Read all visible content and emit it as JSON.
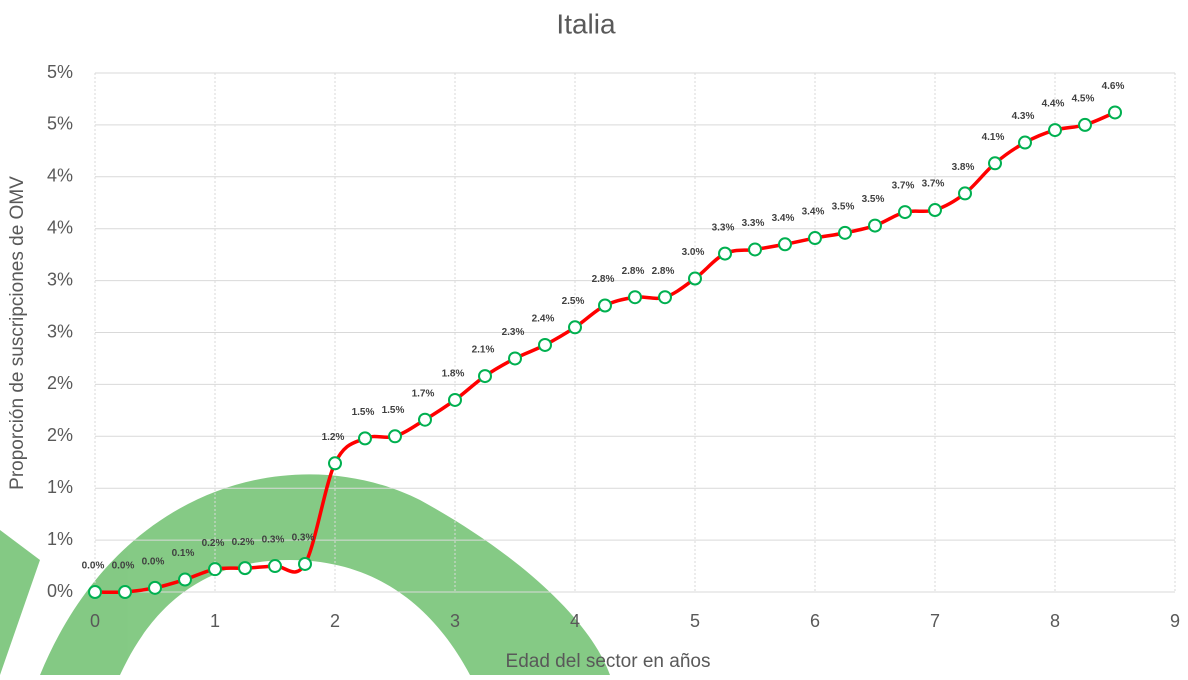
{
  "chart_data": {
    "type": "line",
    "title": "Italia",
    "x_label": "Edad del sector en años",
    "y_label": "Proporción de suscripciones de OMV",
    "x": [
      0,
      0.25,
      0.5,
      0.75,
      1,
      1.25,
      1.5,
      1.75,
      2,
      2.25,
      2.5,
      2.75,
      3,
      3.25,
      3.5,
      3.75,
      4,
      4.25,
      4.5,
      4.75,
      5,
      5.25,
      5.5,
      5.75,
      6,
      6.25,
      6.5,
      6.75,
      7,
      7.25,
      7.5,
      7.75,
      8,
      8.25,
      8.5
    ],
    "series": [
      {
        "color": "#ff0000",
        "marker_color": "#00b050",
        "values": [
          0,
          0,
          0.04,
          0.12,
          0.22,
          0.23,
          0.25,
          0.27,
          1.24,
          1.48,
          1.5,
          1.66,
          1.85,
          2.08,
          2.25,
          2.38,
          2.55,
          2.76,
          2.84,
          2.84,
          3.02,
          3.26,
          3.3,
          3.35,
          3.41,
          3.46,
          3.53,
          3.66,
          3.68,
          3.84,
          4.13,
          4.33,
          4.45,
          4.5,
          4.62
        ],
        "value_labels": [
          "0.0%",
          "0.0%",
          "0.0%",
          "0.1%",
          "0.2%",
          "0.2%",
          "0.3%",
          "0.3%",
          "1.2%",
          "1.5%",
          "1.5%",
          "1.7%",
          "1.8%",
          "2.1%",
          "2.3%",
          "2.4%",
          "2.5%",
          "2.8%",
          "2.8%",
          "2.8%",
          "3.0%",
          "3.3%",
          "3.3%",
          "3.4%",
          "3.4%",
          "3.5%",
          "3.5%",
          "3.7%",
          "3.7%",
          "3.8%",
          "4.1%",
          "4.3%",
          "4.4%",
          "4.5%",
          "4.6%"
        ]
      }
    ],
    "xlim": [
      0,
      9
    ],
    "xticks": [
      0,
      1,
      2,
      3,
      4,
      5,
      6,
      7,
      8,
      9
    ],
    "ylim": [
      0,
      5
    ],
    "yticks": [
      {
        "value": 0,
        "label": "0%"
      },
      {
        "value": 0.5,
        "label": "1%"
      },
      {
        "value": 1,
        "label": "1%"
      },
      {
        "value": 1.5,
        "label": "2%"
      },
      {
        "value": 2,
        "label": "2%"
      },
      {
        "value": 2.5,
        "label": "3%"
      },
      {
        "value": 3,
        "label": "3%"
      },
      {
        "value": 3.5,
        "label": "4%"
      },
      {
        "value": 4,
        "label": "4%"
      },
      {
        "value": 4.5,
        "label": "5%"
      },
      {
        "value": 5,
        "label": "5%"
      }
    ],
    "grid": true
  }
}
